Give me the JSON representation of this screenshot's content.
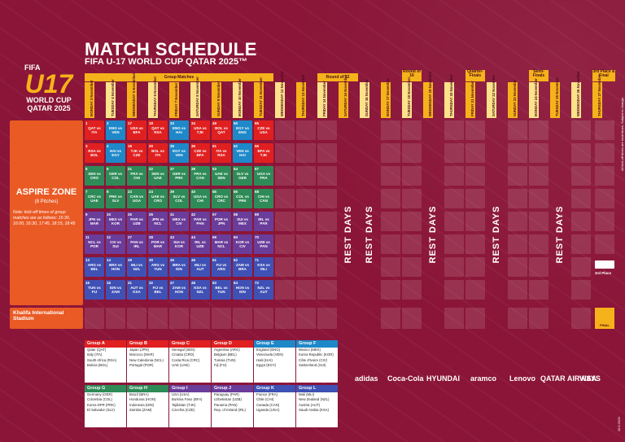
{
  "header": {
    "title": "MATCH SCHEDULE",
    "subtitle": "FIFA U-17 WORLD CUP QATAR 2025™"
  },
  "logo": {
    "fifa": "FIFA",
    "u17": "U17",
    "line1": "WORLD CUP",
    "line2": "QATAR 2025"
  },
  "stages": {
    "group": "Group Matches",
    "r32": "Round of 32",
    "r16": "Round of 16",
    "qf": "Quarter-Finals",
    "sf": "Semi-Finals",
    "final": "3rd Place & Final"
  },
  "days": [
    "MONDAY 3 November",
    "TUESDAY 4 November",
    "WEDNESDAY 5 November",
    "THURSDAY 6 November",
    "FRIDAY 7 November",
    "SATURDAY 8 November",
    "SUNDAY 9 November",
    "MONDAY 10 November",
    "TUESDAY 11 November",
    "WEDNESDAY 12 November",
    "THURSDAY 13 November",
    "FRIDAY 14 November",
    "SATURDAY 15 November",
    "SUNDAY 16 November",
    "MONDAY 17 November",
    "TUESDAY 18 November",
    "WEDNESDAY 19 November",
    "THURSDAY 20 November",
    "FRIDAY 21 November",
    "SATURDAY 22 November",
    "SUNDAY 23 November",
    "MONDAY 24 November",
    "TUESDAY 25 November",
    "WEDNESDAY 26 November",
    "THURSDAY 27 November"
  ],
  "venues": {
    "aspire": "ASPIRE ZONE",
    "aspire_sub": "(8 Pitches)",
    "note": "Note: kick-off times of group matches are as follows: 15:30, 16:00, 16:30, 17:45, 18:15, 18:45",
    "khalifa": "Khalifa International Stadium"
  },
  "rest_label": "REST DAYS",
  "third_place": "3rd Place",
  "final_label": "FINAL",
  "matches": [
    {
      "n": "1",
      "t": "QAT vs ITA",
      "c": "#e02020"
    },
    {
      "n": "2",
      "t": "ENG vs VEN",
      "c": "#1e88c8"
    },
    {
      "n": "17",
      "t": "USA vs BFA",
      "c": "#e02020"
    },
    {
      "n": "18",
      "t": "QAT vs RSA",
      "c": "#e02020"
    },
    {
      "n": "33",
      "t": "ENG vs HAI",
      "c": "#1e88c8"
    },
    {
      "n": "34",
      "t": "USA vs TJK",
      "c": "#e02020"
    },
    {
      "n": "49",
      "t": "BOL vs QAT",
      "c": "#e02020"
    },
    {
      "n": "50",
      "t": "EGY vs ENG",
      "c": "#1e88c8"
    },
    {
      "n": "65",
      "t": "CZE vs USA",
      "c": "#e02020"
    },
    {
      "n": "3",
      "t": "RSA vs BOL",
      "c": "#e02020"
    },
    {
      "n": "4",
      "t": "HAI vs EGY",
      "c": "#1e88c8"
    },
    {
      "n": "19",
      "t": "TJK vs CZE",
      "c": "#e02020"
    },
    {
      "n": "20",
      "t": "BOL vs ITA",
      "c": "#e02020"
    },
    {
      "n": "35",
      "t": "EGY vs VEN",
      "c": "#1e88c8"
    },
    {
      "n": "36",
      "t": "CZE vs BFA",
      "c": "#e02020"
    },
    {
      "n": "51",
      "t": "ITA vs RSA",
      "c": "#e02020"
    },
    {
      "n": "52",
      "t": "VEN vs HAI",
      "c": "#1e88c8"
    },
    {
      "n": "66",
      "t": "BFA vs TJK",
      "c": "#e02020"
    },
    {
      "n": "5",
      "t": "SEN vs CRO",
      "c": "#2e8b57"
    },
    {
      "n": "6",
      "t": "GER vs COL",
      "c": "#2e8b57"
    },
    {
      "n": "21",
      "t": "FRA vs CHI",
      "c": "#2e8b57"
    },
    {
      "n": "22",
      "t": "SEN vs UAE",
      "c": "#2e8b57"
    },
    {
      "n": "37",
      "t": "GER vs PRK",
      "c": "#2e8b57"
    },
    {
      "n": "38",
      "t": "FRA vs CAN",
      "c": "#2e8b57"
    },
    {
      "n": "53",
      "t": "UAE vs SEN",
      "c": "#2e8b57"
    },
    {
      "n": "54",
      "t": "SLV vs GER",
      "c": "#2e8b57"
    },
    {
      "n": "67",
      "t": "UGA vs FRA",
      "c": "#2e8b57"
    },
    {
      "n": "7",
      "t": "CRC vs UAE",
      "c": "#2e8b57"
    },
    {
      "n": "8",
      "t": "PRK vs SLV",
      "c": "#2e8b57"
    },
    {
      "n": "23",
      "t": "CAN vs UGA",
      "c": "#2e8b57"
    },
    {
      "n": "24",
      "t": "UAE vs CRO",
      "c": "#2e8b57"
    },
    {
      "n": "39",
      "t": "SLV vs COL",
      "c": "#2e8b57"
    },
    {
      "n": "40",
      "t": "UGA vs CHI",
      "c": "#2e8b57"
    },
    {
      "n": "55",
      "t": "CRO vs CRC",
      "c": "#2e8b57"
    },
    {
      "n": "56",
      "t": "COL vs PRK",
      "c": "#2e8b57"
    },
    {
      "n": "68",
      "t": "CHI vs CAN",
      "c": "#2e8b57"
    },
    {
      "n": "9",
      "t": "JPN vs MAR",
      "c": "#6a3d9a"
    },
    {
      "n": "10",
      "t": "MEX vs KOR",
      "c": "#6a3d9a"
    },
    {
      "n": "25",
      "t": "PAR vs UZB",
      "c": "#6a3d9a"
    },
    {
      "n": "26",
      "t": "JPN vs NCL",
      "c": "#6a3d9a"
    },
    {
      "n": "41",
      "t": "MEX vs CIV",
      "c": "#6a3d9a"
    },
    {
      "n": "42",
      "t": "PAR vs PAN",
      "c": "#6a3d9a"
    },
    {
      "n": "57",
      "t": "POR vs JPN",
      "c": "#6a3d9a"
    },
    {
      "n": "58",
      "t": "SUI vs MEX",
      "c": "#6a3d9a"
    },
    {
      "n": "69",
      "t": "IRL vs PAR",
      "c": "#6a3d9a"
    },
    {
      "n": "11",
      "t": "NCL vs POR",
      "c": "#6a3d9a"
    },
    {
      "n": "12",
      "t": "CIV vs SUI",
      "c": "#6a3d9a"
    },
    {
      "n": "27",
      "t": "PAN vs IRL",
      "c": "#6a3d9a"
    },
    {
      "n": "28",
      "t": "POR vs MAR",
      "c": "#6a3d9a"
    },
    {
      "n": "43",
      "t": "SUI vs KOR",
      "c": "#6a3d9a"
    },
    {
      "n": "44",
      "t": "IRL vs UZB",
      "c": "#6a3d9a"
    },
    {
      "n": "59",
      "t": "MAR vs NCL",
      "c": "#6a3d9a"
    },
    {
      "n": "60",
      "t": "KOR vs CIV",
      "c": "#6a3d9a"
    },
    {
      "n": "70",
      "t": "UZB vs PAN",
      "c": "#6a3d9a"
    },
    {
      "n": "13",
      "t": "ARG vs BEL",
      "c": "#3f51b5"
    },
    {
      "n": "14",
      "t": "BRA vs HON",
      "c": "#3f51b5"
    },
    {
      "n": "29",
      "t": "MLI vs NZL",
      "c": "#3f51b5"
    },
    {
      "n": "30",
      "t": "ARG vs TUN",
      "c": "#3f51b5"
    },
    {
      "n": "45",
      "t": "BRA vs IDN",
      "c": "#3f51b5"
    },
    {
      "n": "46",
      "t": "MLI vs AUT",
      "c": "#3f51b5"
    },
    {
      "n": "61",
      "t": "FIJ vs ARG",
      "c": "#3f51b5"
    },
    {
      "n": "62",
      "t": "ZAM vs BRA",
      "c": "#3f51b5"
    },
    {
      "n": "71",
      "t": "KSA vs MLI",
      "c": "#3f51b5"
    },
    {
      "n": "15",
      "t": "TUN vs FIJ",
      "c": "#3f51b5"
    },
    {
      "n": "16",
      "t": "IDN vs ZAM",
      "c": "#3f51b5"
    },
    {
      "n": "31",
      "t": "AUT vs KSA",
      "c": "#3f51b5"
    },
    {
      "n": "32",
      "t": "FIJ vs BEL",
      "c": "#3f51b5"
    },
    {
      "n": "47",
      "t": "ZAM vs HON",
      "c": "#3f51b5"
    },
    {
      "n": "48",
      "t": "KSA vs NZL",
      "c": "#3f51b5"
    },
    {
      "n": "63",
      "t": "BEL vs TUN",
      "c": "#3f51b5"
    },
    {
      "n": "64",
      "t": "HON vs IDN",
      "c": "#3f51b5"
    },
    {
      "n": "72",
      "t": "NZL vs AUT",
      "c": "#3f51b5"
    }
  ],
  "groups": [
    {
      "name": "Group A",
      "color": "#e02020",
      "teams": [
        "Qatar (QAT)",
        "Italy (ITA)",
        "South Africa (RSA)",
        "Bolivia (BOL)"
      ]
    },
    {
      "name": "Group B",
      "color": "#e02020",
      "teams": [
        "Japan (JPN)",
        "Morocco (MAR)",
        "New Caledonia (NCL)",
        "Portugal (POR)"
      ]
    },
    {
      "name": "Group C",
      "color": "#e02020",
      "teams": [
        "Senegal (SEN)",
        "Croatia (CRO)",
        "Costa Rica (CRC)",
        "UAE (UAE)"
      ]
    },
    {
      "name": "Group D",
      "color": "#e02020",
      "teams": [
        "Argentina (ARG)",
        "Belgium (BEL)",
        "Tunisia (TUN)",
        "Fiji (FIJ)"
      ]
    },
    {
      "name": "Group E",
      "color": "#1e88c8",
      "teams": [
        "England (ENG)",
        "Venezuela (VEN)",
        "Haiti (HAI)",
        "Egypt (EGY)"
      ]
    },
    {
      "name": "Group F",
      "color": "#1e88c8",
      "teams": [
        "Mexico (MEX)",
        "Korea Republic (KOR)",
        "Côte d'Ivoire (CIV)",
        "Switzerland (SUI)"
      ]
    },
    {
      "name": "Group G",
      "color": "#2e8b57",
      "teams": [
        "Germany (GER)",
        "Colombia (COL)",
        "Korea DPR (PRK)",
        "El Salvador (SLV)"
      ]
    },
    {
      "name": "Group H",
      "color": "#2e8b57",
      "teams": [
        "Brazil (BRA)",
        "Honduras (HON)",
        "Indonesia (IDN)",
        "Zambia (ZAM)"
      ]
    },
    {
      "name": "Group I",
      "color": "#6a3d9a",
      "teams": [
        "USA (USA)",
        "Burkina Faso (BFA)",
        "Tajikistan (TJK)",
        "Czechia (CZE)"
      ]
    },
    {
      "name": "Group J",
      "color": "#6a3d9a",
      "teams": [
        "Paraguay (PAR)",
        "Uzbekistan (UZB)",
        "Panama (PAN)",
        "Rep. of Ireland (IRL)"
      ]
    },
    {
      "name": "Group K",
      "color": "#3f51b5",
      "teams": [
        "France (FRA)",
        "Chile (CHI)",
        "Canada (CAN)",
        "Uganda (UGA)"
      ]
    },
    {
      "name": "Group L",
      "color": "#3f51b5",
      "teams": [
        "Mali (MLI)",
        "New Zealand (NZL)",
        "Austria (AUT)",
        "Saudi Arabia (KSA)"
      ]
    }
  ],
  "sponsors": [
    "adidas",
    "Coca-Cola",
    "HYUNDAI",
    "aramco",
    "Lenovo",
    "QATAR AIRWAYS",
    "VISA"
  ],
  "sponsor_labels": {
    "supporter": "FIFA SUPPORTER",
    "cc": "FIFA U17 WORLD CUP QATAR 2025"
  },
  "side_note": "All kick-off times are local times. Subject to change.",
  "date_note": "28.5.2025",
  "copyright": "© FIFA"
}
